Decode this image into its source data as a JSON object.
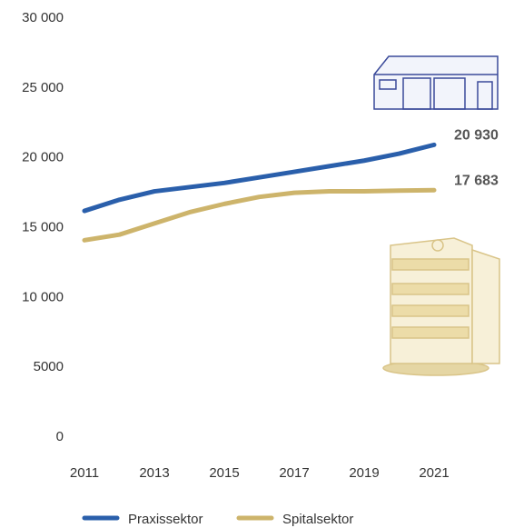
{
  "chart_data": {
    "type": "line",
    "x": [
      2011,
      2012,
      2013,
      2014,
      2015,
      2016,
      2017,
      2018,
      2019,
      2020,
      2021
    ],
    "xlim": [
      2011,
      2021
    ],
    "xticks": [
      2011,
      2013,
      2015,
      2017,
      2019,
      2021
    ],
    "ylim": [
      0,
      30000
    ],
    "yticks": [
      0,
      5000,
      {
        "value": 10000,
        "label": "10 000"
      },
      {
        "value": 15000,
        "label": "15 000"
      },
      {
        "value": 20000,
        "label": "20 000"
      },
      {
        "value": 25000,
        "label": "25 000"
      },
      {
        "value": 30000,
        "label": "30 000"
      }
    ],
    "grid": false,
    "legend": "bottom",
    "series": [
      {
        "name": "Praxissektor",
        "color": "#2a5fab",
        "values": [
          16200,
          17000,
          17600,
          17900,
          18200,
          18600,
          19000,
          19400,
          19800,
          20300,
          20930
        ],
        "value_labels": [
          null,
          null,
          null,
          null,
          null,
          null,
          null,
          null,
          null,
          null,
          "20 930"
        ]
      },
      {
        "name": "Spitalsektor",
        "color": "#cdb46b",
        "values": [
          14100,
          14500,
          15300,
          16100,
          16700,
          17200,
          17500,
          17600,
          17600,
          17650,
          17683
        ],
        "value_labels": [
          null,
          null,
          null,
          null,
          null,
          null,
          null,
          null,
          null,
          null,
          "17 683"
        ]
      }
    ]
  }
}
